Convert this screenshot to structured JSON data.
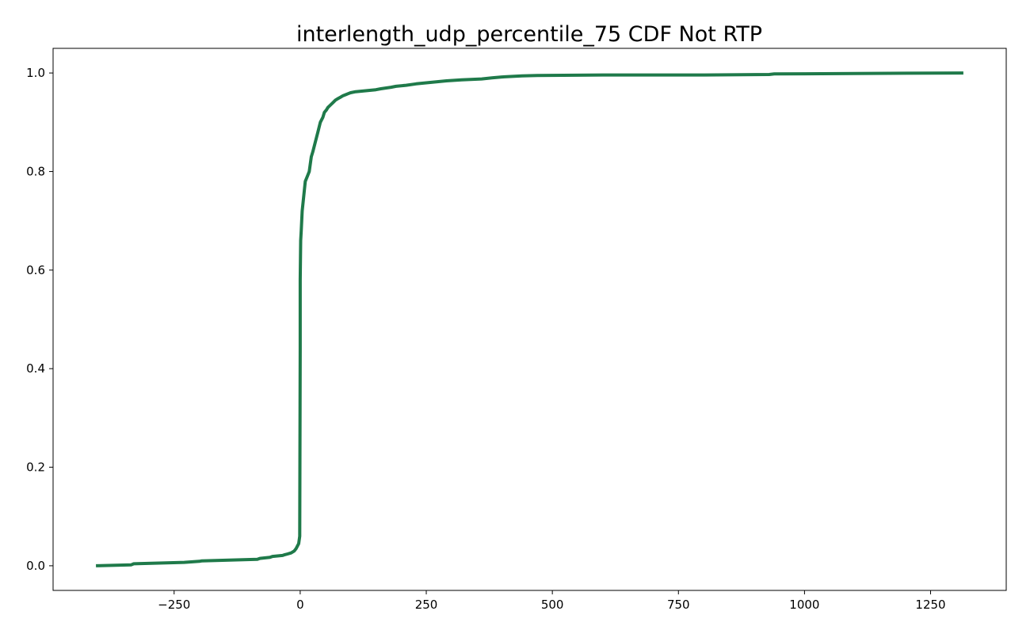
{
  "chart_data": {
    "type": "line",
    "title": "interlength_udp_percentile_75 CDF Not RTP",
    "xlabel": "",
    "ylabel": "",
    "xlim": [
      -490,
      1400
    ],
    "ylim": [
      -0.05,
      1.05
    ],
    "xticks": [
      -250,
      0,
      250,
      500,
      750,
      1000,
      1250
    ],
    "xtick_labels": [
      "−250",
      "0",
      "250",
      "500",
      "750",
      "1000",
      "1250"
    ],
    "yticks": [
      0.0,
      0.2,
      0.4,
      0.6,
      0.8,
      1.0
    ],
    "ytick_labels": [
      "0.0",
      "0.2",
      "0.4",
      "0.6",
      "0.8",
      "1.0"
    ],
    "grid": false,
    "legend": "none",
    "line_color": "#1f7a4a",
    "series": [
      {
        "x": [
          -405,
          -335,
          -330,
          -230,
          -200,
          -195,
          -85,
          -80,
          -60,
          -55,
          -35,
          -32,
          -25,
          -18,
          -12,
          -8,
          -3,
          -1,
          0,
          0,
          0,
          1,
          2,
          3,
          4,
          6,
          8,
          10,
          14,
          18,
          22,
          25,
          30,
          35,
          40,
          45,
          48,
          52,
          55,
          60,
          65,
          70,
          75,
          80,
          85,
          90,
          95,
          100,
          110,
          130,
          150,
          160,
          180,
          190,
          210,
          230,
          260,
          290,
          320,
          360,
          380,
          400,
          440,
          470,
          600,
          800,
          930,
          940,
          1100,
          1315
        ],
        "y": [
          0.0,
          0.002,
          0.004,
          0.007,
          0.009,
          0.01,
          0.013,
          0.015,
          0.017,
          0.019,
          0.021,
          0.022,
          0.024,
          0.026,
          0.03,
          0.035,
          0.045,
          0.06,
          0.44,
          0.52,
          0.58,
          0.66,
          0.68,
          0.7,
          0.72,
          0.74,
          0.76,
          0.78,
          0.79,
          0.8,
          0.83,
          0.84,
          0.86,
          0.88,
          0.9,
          0.91,
          0.92,
          0.925,
          0.93,
          0.935,
          0.94,
          0.945,
          0.948,
          0.951,
          0.954,
          0.956,
          0.958,
          0.96,
          0.962,
          0.964,
          0.966,
          0.968,
          0.971,
          0.973,
          0.975,
          0.978,
          0.981,
          0.984,
          0.986,
          0.988,
          0.99,
          0.992,
          0.994,
          0.995,
          0.996,
          0.996,
          0.997,
          0.998,
          0.999,
          1.0
        ]
      }
    ]
  }
}
